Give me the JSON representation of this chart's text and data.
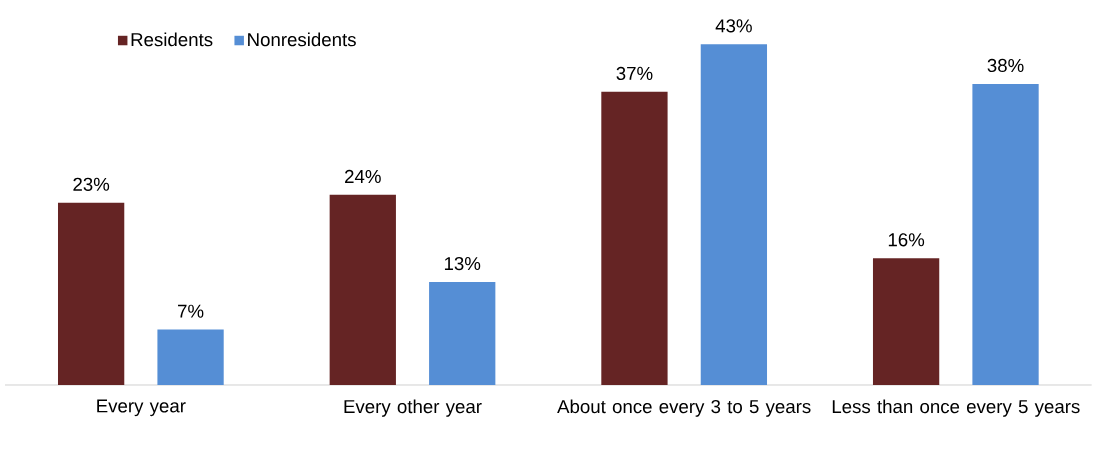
{
  "chart_data": {
    "type": "bar",
    "categories": [
      "Every year",
      "Every other year",
      "About once every 3 to 5 years",
      "Less than once every 5 years"
    ],
    "series": [
      {
        "name": "Residents",
        "color": "#652424",
        "values": [
          23,
          24,
          37,
          16
        ],
        "value_labels": [
          "23%",
          "24%",
          "37%",
          "16%"
        ]
      },
      {
        "name": "Nonresidents",
        "color": "#558ed5",
        "values": [
          7,
          13,
          43,
          38
        ],
        "value_labels": [
          "7%",
          "13%",
          "43%",
          "38%"
        ]
      }
    ],
    "legend": "top left",
    "grid": false,
    "tick_labels": "x"
  }
}
